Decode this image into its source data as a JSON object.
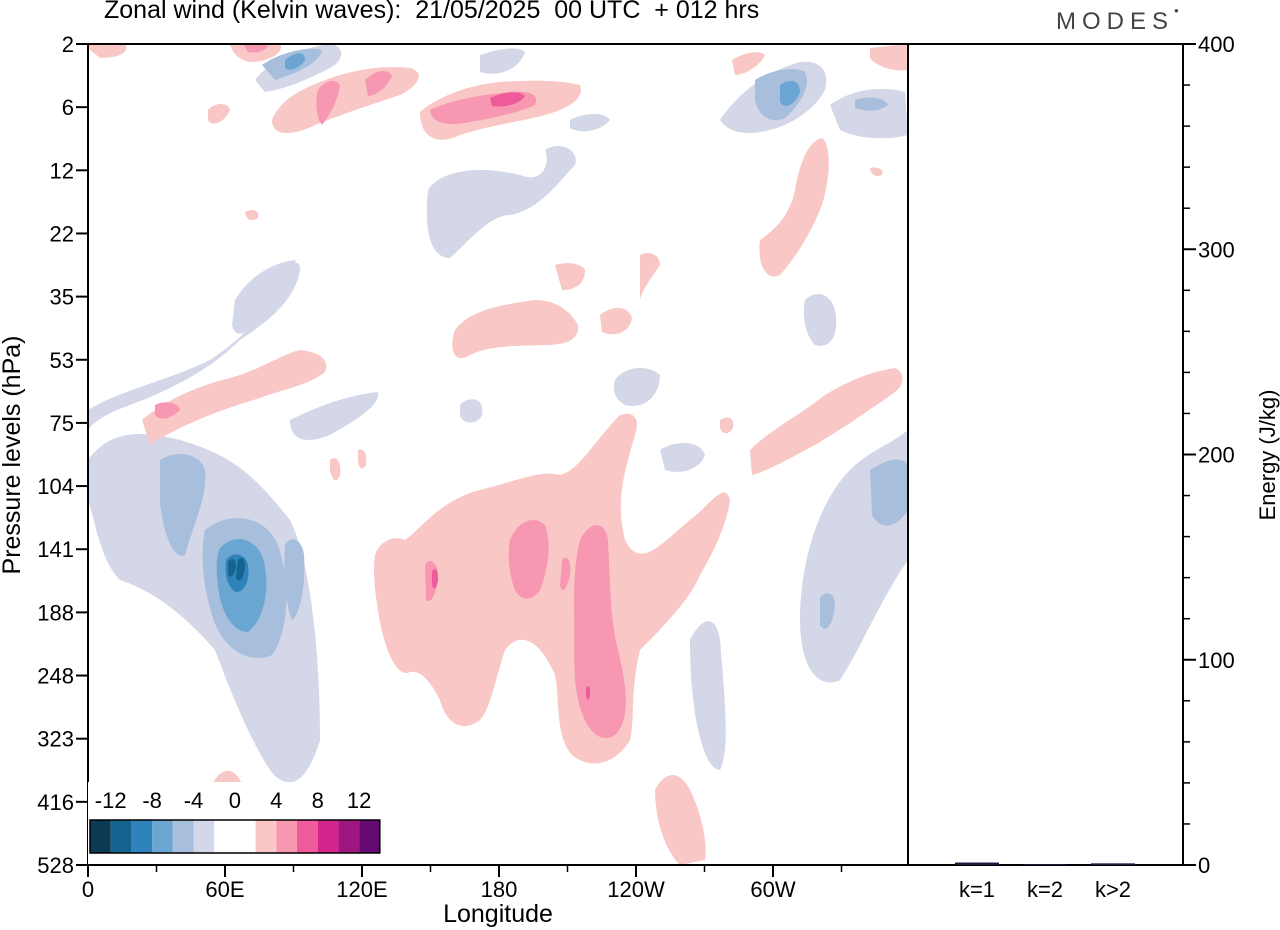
{
  "header": {
    "title": "Zonal wind (Kelvin waves):  21/05/2025  00 UTC  + 012 hrs",
    "logo": "MODES"
  },
  "colors": {
    "scale": [
      "#0b3a52",
      "#15638e",
      "#2f83bb",
      "#6aa6d1",
      "#a7bfdc",
      "#d4d7e7",
      "#ffffff",
      "#ffffff",
      "#f8c7c6",
      "#f797b1",
      "#ee5a9a",
      "#d3248d",
      "#a01680",
      "#650a73"
    ],
    "axis": "#000000"
  },
  "chart_data": [
    {
      "type": "heatmap",
      "title": "Zonal wind (Kelvin waves):  21/05/2025  00 UTC  + 012 hrs",
      "xlabel": "Longitude",
      "ylabel": "Pressure levels (hPa)",
      "x_ticks": [
        "0",
        "60E",
        "120E",
        "180",
        "120W",
        "60W"
      ],
      "y_ticks": [
        "2",
        "6",
        "12",
        "22",
        "35",
        "53",
        "75",
        "104",
        "141",
        "188",
        "248",
        "323",
        "416",
        "528"
      ],
      "colorbar": {
        "labels": [
          "-12",
          "-8",
          "-4",
          "0",
          "4",
          "8",
          "12"
        ],
        "levels": [
          -14,
          -12,
          -10,
          -8,
          -6,
          -4,
          -2,
          0,
          2,
          4,
          6,
          8,
          10,
          12,
          14
        ]
      },
      "features": [
        {
          "lon": 62,
          "p": 150,
          "value": -11
        },
        {
          "lon": 92,
          "p": 170,
          "value": -6
        },
        {
          "lon": 40,
          "p": 110,
          "value": -5
        },
        {
          "lon": 205,
          "p": 150,
          "value": 5
        },
        {
          "lon": 228,
          "p": 240,
          "value": 7
        },
        {
          "lon": 190,
          "p": 6,
          "value": 6
        },
        {
          "lon": 110,
          "p": 5,
          "value": 5
        },
        {
          "lon": 310,
          "p": 5,
          "value": -5
        },
        {
          "lon": 350,
          "p": 115,
          "value": -5
        }
      ]
    },
    {
      "type": "bar",
      "categories": [
        "k=1",
        "k=2",
        "k>2"
      ],
      "values": [
        1.2,
        0.4,
        0.8
      ],
      "ylabel": "Energy (J/kg)",
      "ylim": [
        0,
        400
      ],
      "y_ticks": [
        "0",
        "100",
        "200",
        "300",
        "400"
      ]
    }
  ]
}
